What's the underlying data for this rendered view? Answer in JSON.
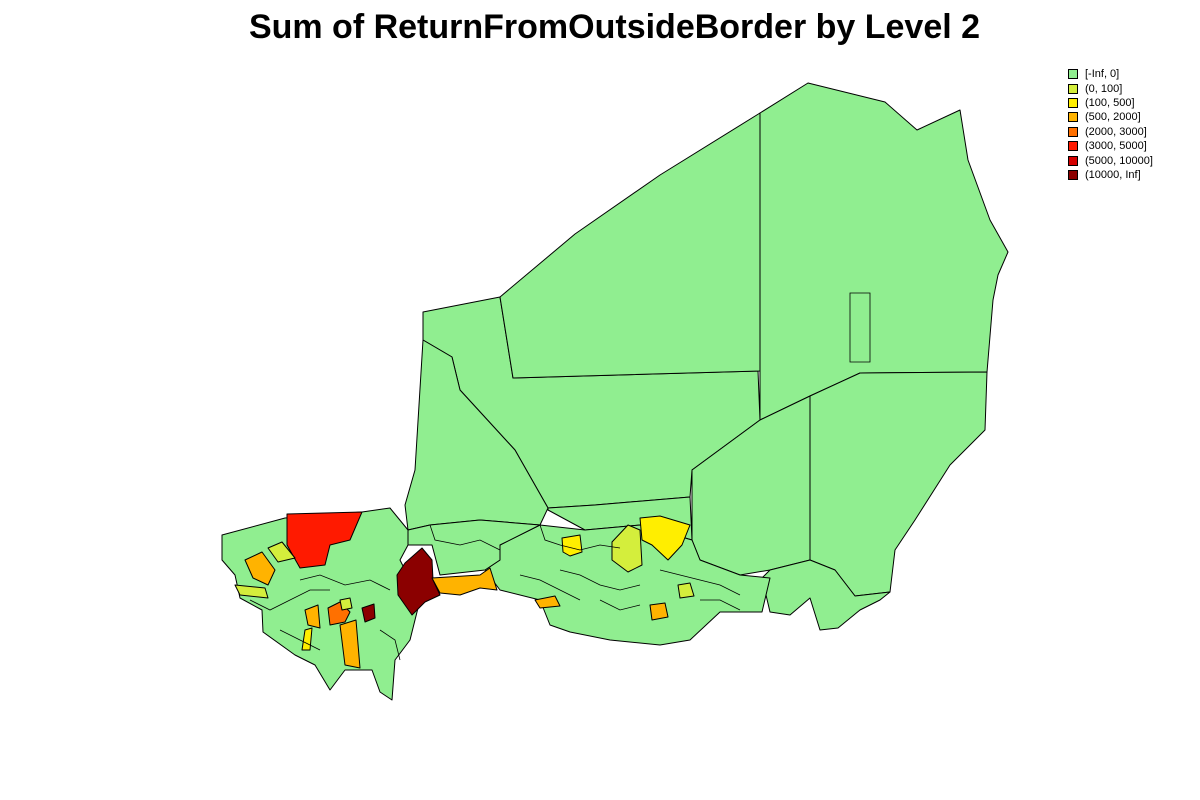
{
  "title": "Sum of ReturnFromOutsideBorder by Level 2",
  "legend": {
    "placement": "top-right",
    "items": [
      {
        "label": "[-Inf, 0]",
        "color": "#90ee90"
      },
      {
        "label": "(0, 100]",
        "color": "#d4ee3c"
      },
      {
        "label": "(100, 500]",
        "color": "#ffee00"
      },
      {
        "label": "(500, 2000]",
        "color": "#ffb300"
      },
      {
        "label": "(2000, 3000]",
        "color": "#ff7000"
      },
      {
        "label": "(3000, 5000]",
        "color": "#ff1a00"
      },
      {
        "label": "(5000, 10000]",
        "color": "#d50000"
      },
      {
        "label": "(10000, Inf]",
        "color": "#8b0000"
      }
    ]
  },
  "colors": {
    "boundary": "#000000",
    "background": "#ffffff"
  }
}
